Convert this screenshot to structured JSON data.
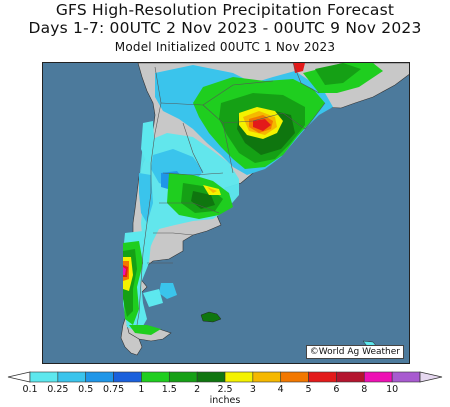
{
  "header": {
    "title": "GFS High-Resolution Precipitation Forecast",
    "period": "Days 1-7: 00UTC 2 Nov 2023 - 00UTC 9 Nov 2023",
    "init": "Model Initialized 00UTC 1 Nov 2023"
  },
  "map": {
    "credit": "©World Ag Weather",
    "colors": {
      "ocean": "#4c7a9c",
      "land": "#c8c8c8",
      "border": "#555555"
    }
  },
  "legend": {
    "units": "inches",
    "ticks": [
      "0.1",
      "0.25",
      "0.5",
      "0.75",
      "1",
      "1.5",
      "2",
      "2.5",
      "3",
      "4",
      "5",
      "6",
      "8",
      "10"
    ],
    "colors": [
      "#5de8ee",
      "#3ac4ec",
      "#1f96e8",
      "#1a60dc",
      "#1fce1f",
      "#15a015",
      "#0f760f",
      "#f4f200",
      "#f5b800",
      "#f27800",
      "#e31a1a",
      "#b4142e",
      "#ee10b4",
      "#a85ad0"
    ]
  }
}
